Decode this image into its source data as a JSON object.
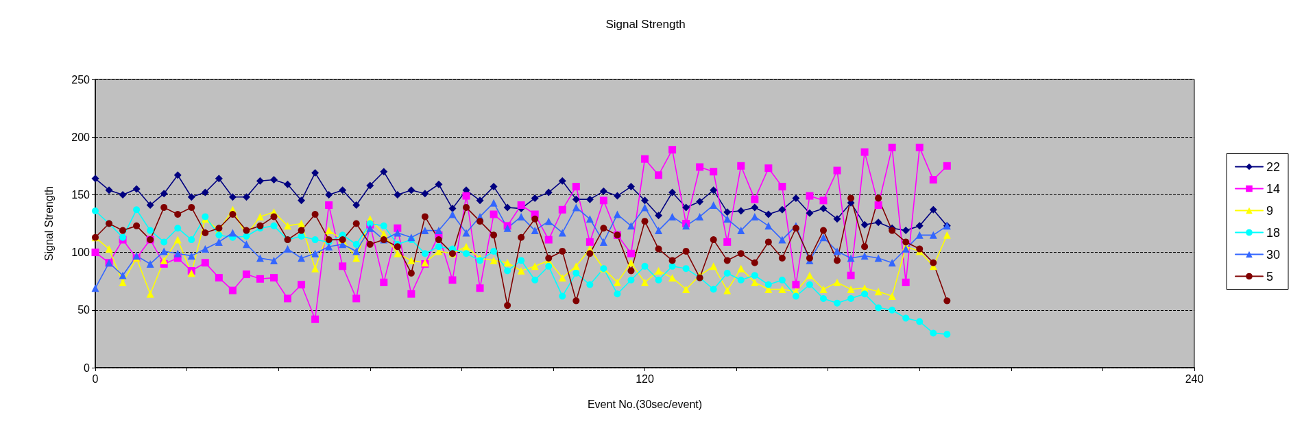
{
  "chart_data": {
    "type": "line",
    "title": "Signal Strength",
    "xlabel": "Event No.(30sec/event)",
    "ylabel": "Signal Strength",
    "x": [
      0,
      3,
      6,
      9,
      12,
      15,
      18,
      21,
      24,
      27,
      30,
      33,
      36,
      39,
      42,
      45,
      48,
      51,
      54,
      57,
      60,
      63,
      66,
      69,
      72,
      75,
      78,
      81,
      84,
      87,
      90,
      93,
      96,
      99,
      102,
      105,
      108,
      111,
      114,
      117,
      120,
      123,
      126,
      129,
      132,
      135,
      138,
      141,
      144,
      147,
      150,
      153,
      156,
      159,
      162,
      165,
      168,
      171,
      174,
      177,
      180,
      183,
      186
    ],
    "series": [
      {
        "name": "22",
        "color": "#000080",
        "marker": "diamond",
        "values": [
          164,
          154,
          150,
          155,
          141,
          151,
          167,
          148,
          152,
          164,
          148,
          148,
          162,
          163,
          159,
          145,
          169,
          150,
          154,
          141,
          158,
          170,
          150,
          154,
          151,
          159,
          138,
          154,
          145,
          157,
          139,
          138,
          147,
          152,
          162,
          146,
          146,
          153,
          149,
          157,
          145,
          132,
          152,
          139,
          144,
          154,
          135,
          136,
          139,
          133,
          137,
          147,
          134,
          138,
          129,
          143,
          124,
          126,
          121,
          119,
          123,
          137,
          123
        ]
      },
      {
        "name": "14",
        "color": "#ff00ff",
        "marker": "square",
        "values": [
          100,
          91,
          111,
          95,
          111,
          90,
          95,
          84,
          91,
          78,
          67,
          81,
          77,
          78,
          60,
          72,
          42,
          141,
          88,
          60,
          124,
          74,
          121,
          64,
          90,
          115,
          76,
          149,
          69,
          133,
          123,
          141,
          133,
          111,
          137,
          157,
          109,
          145,
          115,
          99,
          181,
          167,
          189,
          125,
          174,
          170,
          109,
          175,
          146,
          173,
          157,
          72,
          149,
          145,
          171,
          80,
          187,
          141,
          191,
          74,
          191,
          163,
          175
        ]
      },
      {
        "name": "9",
        "color": "#ffff00",
        "marker": "triangle",
        "values": [
          113,
          103,
          74,
          95,
          64,
          93,
          111,
          82,
          129,
          119,
          137,
          115,
          131,
          135,
          123,
          125,
          86,
          119,
          111,
          95,
          129,
          116,
          99,
          93,
          91,
          101,
          99,
          105,
          95,
          93,
          91,
          84,
          88,
          93,
          78,
          88,
          103,
          86,
          74,
          91,
          74,
          84,
          78,
          68,
          80,
          88,
          67,
          86,
          74,
          68,
          68,
          66,
          80,
          68,
          74,
          68,
          69,
          66,
          62,
          105,
          101,
          88,
          115
        ]
      },
      {
        "name": "18",
        "color": "#00ffff",
        "marker": "circle",
        "values": [
          136,
          125,
          113,
          137,
          119,
          109,
          121,
          111,
          131,
          115,
          113,
          114,
          121,
          123,
          111,
          114,
          111,
          109,
          115,
          107,
          125,
          123,
          107,
          111,
          99,
          105,
          103,
          99,
          93,
          101,
          84,
          93,
          76,
          88,
          62,
          82,
          72,
          86,
          64,
          76,
          88,
          76,
          88,
          86,
          78,
          68,
          82,
          76,
          80,
          72,
          76,
          62,
          72,
          60,
          56,
          60,
          64,
          52,
          50,
          43,
          40,
          30,
          29
        ]
      },
      {
        "name": "30",
        "color": "#3366ff",
        "marker": "triangle",
        "values": [
          69,
          91,
          80,
          97,
          90,
          101,
          99,
          97,
          103,
          109,
          117,
          107,
          95,
          93,
          103,
          95,
          99,
          105,
          107,
          101,
          121,
          111,
          117,
          113,
          119,
          119,
          133,
          117,
          131,
          143,
          121,
          131,
          119,
          127,
          117,
          139,
          129,
          109,
          133,
          123,
          139,
          119,
          131,
          123,
          131,
          141,
          129,
          119,
          131,
          123,
          111,
          123,
          93,
          113,
          101,
          95,
          97,
          95,
          91,
          103,
          115,
          115,
          123
        ]
      },
      {
        "name": "5",
        "color": "#800000",
        "marker": "circle",
        "values": [
          113,
          125,
          119,
          123,
          111,
          139,
          133,
          139,
          117,
          121,
          133,
          119,
          123,
          131,
          111,
          119,
          133,
          111,
          111,
          125,
          107,
          111,
          105,
          82,
          131,
          111,
          99,
          139,
          127,
          115,
          54,
          113,
          129,
          95,
          101,
          58,
          99,
          121,
          115,
          84,
          127,
          103,
          93,
          101,
          78,
          111,
          93,
          99,
          91,
          109,
          95,
          121,
          95,
          119,
          93,
          147,
          105,
          147,
          119,
          109,
          103,
          91,
          58
        ]
      }
    ],
    "xlim": [
      0,
      240
    ],
    "xticks": [
      0,
      {
        "value": 20,
        "label": null
      },
      {
        "value": 40,
        "label": null
      },
      {
        "value": 60,
        "label": null
      },
      {
        "value": 80,
        "label": null
      },
      {
        "value": 100,
        "label": null
      },
      120,
      {
        "value": 140,
        "label": null
      },
      {
        "value": 160,
        "label": null
      },
      {
        "value": 180,
        "label": null
      },
      {
        "value": 200,
        "label": null
      },
      {
        "value": 220,
        "label": null
      },
      240
    ],
    "ylim": [
      0,
      250
    ],
    "yticks": [
      0,
      50,
      100,
      150,
      200,
      250
    ],
    "grid": "y",
    "legend": "right",
    "line_style": "solid"
  }
}
